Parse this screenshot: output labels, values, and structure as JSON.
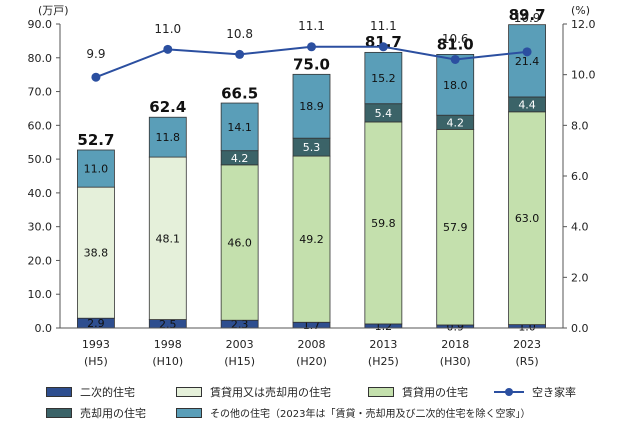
{
  "chart_data": {
    "type": "bar",
    "stacked": true,
    "y_unit": "(万戸)",
    "y2_unit": "(%)",
    "ylim": [
      0,
      90
    ],
    "y2lim": [
      0,
      12
    ],
    "y_ticks": [
      "0.0",
      "10.0",
      "20.0",
      "30.0",
      "40.0",
      "50.0",
      "60.0",
      "70.0",
      "80.0",
      "90.0"
    ],
    "y2_ticks": [
      "0.0",
      "2.0",
      "4.0",
      "6.0",
      "8.0",
      "10.0",
      "12.0"
    ],
    "categories": [
      {
        "year": "1993",
        "era": "(H5)"
      },
      {
        "year": "1998",
        "era": "(H10)"
      },
      {
        "year": "2003",
        "era": "(H15)"
      },
      {
        "year": "2008",
        "era": "(H20)"
      },
      {
        "year": "2013",
        "era": "(H25)"
      },
      {
        "year": "2018",
        "era": "(H30)"
      },
      {
        "year": "2023",
        "era": "(R5)"
      }
    ],
    "series": [
      {
        "name": "二次的住宅",
        "color": "#2e4e8f",
        "values": [
          2.9,
          2.5,
          2.3,
          1.7,
          1.2,
          0.9,
          1.0
        ],
        "labels": [
          "2.9",
          "2.5",
          "2.3",
          "1.7",
          "1.2",
          "0.9",
          "1.0"
        ],
        "text_color": "#111111"
      },
      {
        "name": "賃貸用又は売却用の住宅",
        "color": "#e5f0da",
        "values": [
          38.8,
          48.1,
          null,
          null,
          null,
          null,
          null
        ],
        "labels": [
          "38.8",
          "48.1",
          "",
          "",
          "",
          "",
          ""
        ],
        "text_color": "#111111"
      },
      {
        "name": "賃貸用の住宅",
        "color": "#c4e0ad",
        "values": [
          null,
          null,
          46.0,
          49.2,
          59.8,
          57.9,
          63.0
        ],
        "labels": [
          "",
          "",
          "46.0",
          "49.2",
          "59.8",
          "57.9",
          "63.0"
        ],
        "text_color": "#111111"
      },
      {
        "name": "売却用の住宅",
        "color": "#3b6368",
        "values": [
          null,
          null,
          4.2,
          5.3,
          5.4,
          4.2,
          4.4
        ],
        "labels": [
          "",
          "",
          "4.2",
          "5.3",
          "5.4",
          "4.2",
          "4.4"
        ],
        "text_color": "#ffffff"
      },
      {
        "name": "その他の住宅（2023年は「賃貸・売却用及び二次的住宅を除く空家」）",
        "color": "#5a9eb8",
        "values": [
          11.0,
          11.8,
          14.1,
          18.9,
          15.2,
          18.0,
          21.4
        ],
        "labels": [
          "11.0",
          "11.8",
          "14.1",
          "18.9",
          "15.2",
          "18.0",
          "21.4"
        ],
        "text_color": "#111111"
      }
    ],
    "totals": [
      "52.7",
      "62.4",
      "66.5",
      "75.0",
      "81.7",
      "81.0",
      "89.7"
    ],
    "totals_values": [
      52.7,
      62.4,
      66.5,
      75.0,
      81.7,
      81.0,
      89.7
    ],
    "line": {
      "name": "空き家率",
      "color": "#2b4fa0",
      "axis": "right",
      "values": [
        9.9,
        11.0,
        10.8,
        11.1,
        11.1,
        10.6,
        10.9
      ],
      "labels": [
        "9.9",
        "11.0",
        "10.8",
        "11.1",
        "11.1",
        "10.6",
        "10.9"
      ]
    }
  },
  "legend": {
    "items": [
      {
        "label": "二次的住宅",
        "color": "#2e4e8f"
      },
      {
        "label": "賃貸用又は売却用の住宅",
        "color": "#e5f0da"
      },
      {
        "label": "賃貸用の住宅",
        "color": "#c4e0ad"
      },
      {
        "label": "空き家率",
        "color": "#2b4fa0"
      },
      {
        "label": "売却用の住宅",
        "color": "#3b6368"
      },
      {
        "label": "その他の住宅（2023年は「賃貸・売却用及び二次的住宅を除く空家」）",
        "color": "#5a9eb8"
      }
    ]
  }
}
